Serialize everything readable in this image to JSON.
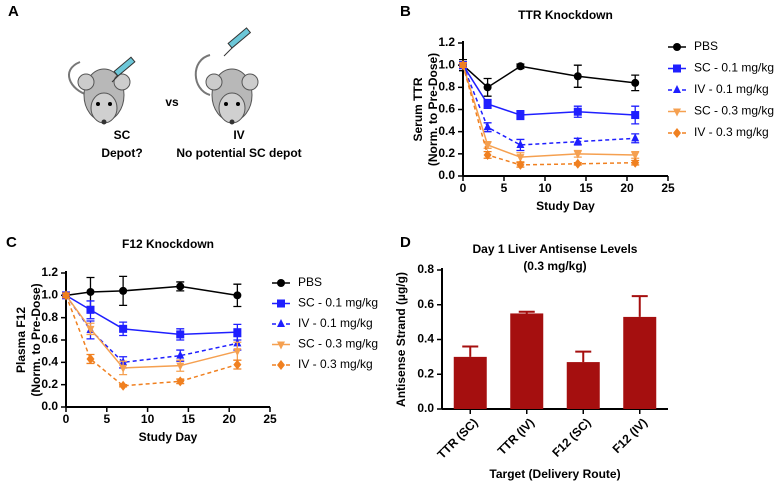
{
  "panel_a": {
    "label": "A",
    "left_label": "SC",
    "left_note": "Depot?",
    "vs": "vs",
    "right_label": "IV",
    "right_note": "No potential SC depot"
  },
  "chart_data": [
    {
      "type": "line",
      "panel": "B",
      "title": "TTR Knockdown",
      "xlabel": "Study Day",
      "ylabel": [
        "Serum TTR",
        "(Norm. to Pre-Dose)"
      ],
      "x": [
        0,
        3,
        7,
        14,
        21
      ],
      "xlim": [
        0,
        25
      ],
      "xticks": [
        0,
        5,
        10,
        15,
        20,
        25
      ],
      "ylim": [
        0,
        1.2
      ],
      "yticks": [
        {
          "value": 0,
          "label": "0.0"
        },
        0.2,
        0.4,
        0.6,
        0.8,
        {
          "value": 1,
          "label": "1.0"
        },
        1.2
      ],
      "series": [
        {
          "name": "PBS",
          "color": "#000000",
          "marker": "circle",
          "dashed": false,
          "values": [
            1.0,
            0.8,
            0.99,
            0.9,
            0.84
          ],
          "errors": [
            0.05,
            0.08,
            0.02,
            0.1,
            0.07
          ]
        },
        {
          "name": "SC - 0.1 mg/kg",
          "color": "#1f1fff",
          "marker": "square",
          "dashed": false,
          "values": [
            1.0,
            0.65,
            0.55,
            0.58,
            0.55
          ],
          "errors": [
            0.03,
            0.04,
            0.04,
            0.05,
            0.08
          ]
        },
        {
          "name": "IV - 0.1 mg/kg",
          "color": "#1f1fff",
          "marker": "triangle",
          "dashed": true,
          "values": [
            1.0,
            0.44,
            0.28,
            0.31,
            0.34
          ],
          "errors": [
            0.03,
            0.04,
            0.05,
            0.03,
            0.04
          ]
        },
        {
          "name": "SC - 0.3 mg/kg",
          "color": "#f5a050",
          "marker": "down-triangle",
          "dashed": false,
          "values": [
            1.0,
            0.28,
            0.17,
            0.2,
            0.19
          ],
          "errors": [
            0.02,
            0.03,
            0.04,
            0.03,
            0.03
          ]
        },
        {
          "name": "IV - 0.3 mg/kg",
          "color": "#f08020",
          "marker": "diamond",
          "dashed": true,
          "values": [
            1.0,
            0.19,
            0.1,
            0.11,
            0.12
          ],
          "errors": [
            0.02,
            0.03,
            0.02,
            0.01,
            0.02
          ]
        }
      ]
    },
    {
      "type": "line",
      "panel": "C",
      "title": "F12 Knockdown",
      "xlabel": "Study Day",
      "ylabel": [
        "Plasma F12",
        "(Norm. to Pre-Dose)"
      ],
      "x": [
        0,
        3,
        7,
        14,
        21
      ],
      "xlim": [
        0,
        25
      ],
      "xticks": [
        0,
        5,
        10,
        15,
        20,
        25
      ],
      "ylim": [
        0,
        1.2
      ],
      "yticks": [
        {
          "value": 0,
          "label": "0.0"
        },
        0.2,
        0.4,
        0.6,
        0.8,
        {
          "value": 1,
          "label": "1.0"
        },
        1.2
      ],
      "series": [
        {
          "name": "PBS",
          "color": "#000000",
          "marker": "circle",
          "dashed": false,
          "values": [
            1.0,
            1.03,
            1.04,
            1.08,
            1.0
          ],
          "errors": [
            0.02,
            0.13,
            0.13,
            0.04,
            0.1
          ]
        },
        {
          "name": "SC - 0.1 mg/kg",
          "color": "#1f1fff",
          "marker": "square",
          "dashed": false,
          "values": [
            1.0,
            0.87,
            0.7,
            0.65,
            0.67
          ],
          "errors": [
            0.02,
            0.08,
            0.06,
            0.05,
            0.07
          ]
        },
        {
          "name": "IV - 0.1 mg/kg",
          "color": "#1f1fff",
          "marker": "triangle",
          "dashed": true,
          "values": [
            1.0,
            0.69,
            0.4,
            0.46,
            0.57
          ],
          "errors": [
            0.02,
            0.08,
            0.05,
            0.05,
            0.06
          ]
        },
        {
          "name": "SC - 0.3 mg/kg",
          "color": "#f5a050",
          "marker": "down-triangle",
          "dashed": false,
          "values": [
            1.0,
            0.7,
            0.35,
            0.37,
            0.5
          ],
          "errors": [
            0.02,
            0.05,
            0.06,
            0.05,
            0.08
          ]
        },
        {
          "name": "IV - 0.3 mg/kg",
          "color": "#f08020",
          "marker": "diamond",
          "dashed": true,
          "values": [
            1.0,
            0.43,
            0.19,
            0.23,
            0.38
          ],
          "errors": [
            0.02,
            0.04,
            0.01,
            0.02,
            0.04
          ]
        }
      ]
    },
    {
      "type": "bar",
      "panel": "D",
      "title": "Day 1 Liver Antisense Levels",
      "subtitle": "(0.3 mg/kg)",
      "xlabel": "Target (Delivery Route)",
      "ylabel": [
        "Antisense Strand (µg/g)"
      ],
      "categories": [
        "TTR (SC)",
        "TTR (IV)",
        "F12 (SC)",
        "F12 (IV)"
      ],
      "values": [
        0.3,
        0.55,
        0.27,
        0.53
      ],
      "errors": [
        0.06,
        0.01,
        0.06,
        0.12
      ],
      "color": "#a50f0f",
      "ylim": [
        0,
        0.8
      ],
      "yticks": [
        {
          "value": 0,
          "label": "0.0"
        },
        0.2,
        0.4,
        0.6,
        0.8
      ]
    }
  ]
}
